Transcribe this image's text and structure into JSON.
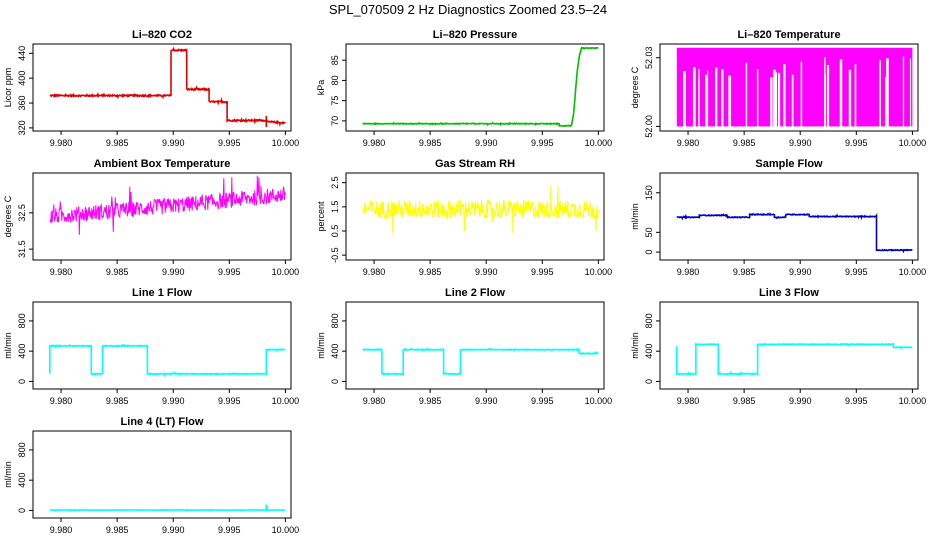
{
  "page": {
    "title": "SPL_070509  2 Hz Diagnostics Zoomed 23.5–24"
  },
  "chart_data": [
    {
      "type": "line",
      "title": "Li–820 CO2",
      "ylabel": "Licor ppm",
      "xlim": [
        9.9775,
        10.0005
      ],
      "ylim": [
        315,
        455
      ],
      "xticks": [
        "9.980",
        "9.985",
        "9.990",
        "9.995",
        "10.000"
      ],
      "xtick_values": [
        9.98,
        9.985,
        9.99,
        9.995,
        10.0
      ],
      "yticks": [
        "320",
        "360",
        "400",
        "440"
      ],
      "ytick_values": [
        320,
        360,
        400,
        440
      ],
      "color": "#e00000",
      "noise": 1.2,
      "series": [
        {
          "points": [
            [
              9.979,
              372
            ],
            [
              9.9898,
              372
            ],
            [
              9.9898,
              445
            ],
            [
              9.9912,
              445
            ],
            [
              9.9912,
              382
            ],
            [
              9.9932,
              382
            ],
            [
              9.9932,
              362
            ],
            [
              9.9948,
              362
            ],
            [
              9.9948,
              332
            ],
            [
              9.9983,
              332
            ],
            [
              9.9983,
              322
            ],
            [
              9.9983,
              340
            ],
            [
              9.9983,
              330
            ],
            [
              10.0,
              328
            ]
          ]
        }
      ]
    },
    {
      "type": "line",
      "title": "Li–820 Pressure",
      "ylabel": "kPa",
      "xlim": [
        9.9775,
        10.0005
      ],
      "ylim": [
        67.5,
        89
      ],
      "xticks": [
        "9.980",
        "9.985",
        "9.990",
        "9.995",
        "10.000"
      ],
      "xtick_values": [
        9.98,
        9.985,
        9.99,
        9.995,
        10.0
      ],
      "yticks": [
        "70",
        "75",
        "80",
        "85"
      ],
      "ytick_values": [
        70,
        75,
        80,
        85
      ],
      "color": "#00c000",
      "noise": 0.08,
      "series": [
        {
          "points": [
            [
              9.979,
              69.3
            ],
            [
              9.9965,
              69.3
            ],
            [
              9.9965,
              68.8
            ],
            [
              9.9976,
              68.8
            ],
            [
              9.9978,
              72
            ],
            [
              9.9981,
              82
            ],
            [
              9.9983,
              86
            ],
            [
              9.9985,
              88
            ],
            [
              10.0,
              88
            ]
          ]
        }
      ]
    },
    {
      "type": "line",
      "title": "Li–820 Temperature",
      "ylabel": "degrees C",
      "xlim": [
        9.9775,
        10.0005
      ],
      "ylim": [
        51.998,
        52.036
      ],
      "xticks": [
        "9.980",
        "9.985",
        "9.990",
        "9.995",
        "10.000"
      ],
      "xtick_values": [
        9.98,
        9.985,
        9.99,
        9.995,
        10.0
      ],
      "yticks": [
        "52.00",
        "52.03"
      ],
      "ytick_values": [
        52.0,
        52.03
      ],
      "color": "#ff00ff",
      "noise": 0,
      "fill_band": [
        52.0,
        52.034
      ],
      "series": [
        {
          "points": [
            [
              9.979,
              52.034
            ],
            [
              10.0,
              52.034
            ]
          ]
        }
      ]
    },
    {
      "type": "line",
      "title": "Ambient Box Temperature",
      "ylabel": "degrees C",
      "xlim": [
        9.9775,
        10.0005
      ],
      "ylim": [
        31.2,
        33.6
      ],
      "xticks": [
        "9.980",
        "9.985",
        "9.990",
        "9.995",
        "10.000"
      ],
      "xtick_values": [
        9.98,
        9.985,
        9.99,
        9.995,
        10.0
      ],
      "yticks": [
        "31.5",
        "32.5"
      ],
      "ytick_values": [
        31.5,
        32.5
      ],
      "color": "#ff00ff",
      "noise": 0.22,
      "series": [
        {
          "points": [
            [
              9.979,
              32.4
            ],
            [
              9.99,
              32.7
            ],
            [
              10.0,
              33.0
            ]
          ]
        }
      ]
    },
    {
      "type": "line",
      "title": "Gas Stream RH",
      "ylabel": "percent",
      "xlim": [
        9.9775,
        10.0005
      ],
      "ylim": [
        -0.7,
        2.9
      ],
      "xticks": [
        "9.980",
        "9.985",
        "9.990",
        "9.995",
        "10.000"
      ],
      "xtick_values": [
        9.98,
        9.985,
        9.99,
        9.995,
        10.0
      ],
      "yticks": [
        "-0.5",
        "0.5",
        "1.5",
        "2.5"
      ],
      "ytick_values": [
        -0.5,
        0.5,
        1.5,
        2.5
      ],
      "color": "#ffff00",
      "noise": 0.38,
      "series": [
        {
          "points": [
            [
              9.979,
              1.4
            ],
            [
              10.0,
              1.4
            ]
          ]
        }
      ]
    },
    {
      "type": "line",
      "title": "Sample Flow",
      "ylabel": "ml/min",
      "xlim": [
        9.9775,
        10.0005
      ],
      "ylim": [
        -20,
        200
      ],
      "xticks": [
        "9.980",
        "9.985",
        "9.990",
        "9.995",
        "10.000"
      ],
      "xtick_values": [
        9.98,
        9.985,
        9.99,
        9.995,
        10.0
      ],
      "yticks": [
        "0",
        "50",
        "150"
      ],
      "ytick_values": [
        0,
        50,
        150
      ],
      "color": "#0000c0",
      "noise": 1.0,
      "series": [
        {
          "points": [
            [
              9.979,
              88
            ],
            [
              9.981,
              88
            ],
            [
              9.981,
              93
            ],
            [
              9.9835,
              93
            ],
            [
              9.9835,
              88
            ],
            [
              9.9855,
              88
            ],
            [
              9.9855,
              95
            ],
            [
              9.9877,
              95
            ],
            [
              9.9877,
              88
            ],
            [
              9.9887,
              88
            ],
            [
              9.9887,
              95
            ],
            [
              9.9908,
              95
            ],
            [
              9.9908,
              90
            ],
            [
              9.9968,
              90
            ],
            [
              9.9968,
              5
            ],
            [
              10.0,
              5
            ]
          ]
        }
      ]
    },
    {
      "type": "line",
      "title": "Line 1 Flow",
      "ylabel": "ml/min",
      "xlim": [
        9.9775,
        10.0005
      ],
      "ylim": [
        -100,
        1050
      ],
      "xticks": [
        "9.980",
        "9.985",
        "9.990",
        "9.995",
        "10.000"
      ],
      "xtick_values": [
        9.98,
        9.985,
        9.99,
        9.995,
        10.0
      ],
      "yticks": [
        "0",
        "400",
        "800"
      ],
      "ytick_values": [
        0,
        400,
        800
      ],
      "color": "#00ffff",
      "noise": 5,
      "series": [
        {
          "points": [
            [
              9.979,
              100
            ],
            [
              9.979,
              470
            ],
            [
              9.9827,
              470
            ],
            [
              9.9827,
              100
            ],
            [
              9.9837,
              100
            ],
            [
              9.9837,
              470
            ],
            [
              9.9877,
              470
            ],
            [
              9.9877,
              100
            ],
            [
              9.9983,
              100
            ],
            [
              9.9983,
              420
            ],
            [
              10.0,
              420
            ]
          ]
        }
      ]
    },
    {
      "type": "line",
      "title": "Line 2 Flow",
      "ylabel": "ml/min",
      "xlim": [
        9.9775,
        10.0005
      ],
      "ylim": [
        -100,
        1050
      ],
      "xticks": [
        "9.980",
        "9.985",
        "9.990",
        "9.995",
        "10.000"
      ],
      "xtick_values": [
        9.98,
        9.985,
        9.99,
        9.995,
        10.0
      ],
      "yticks": [
        "0",
        "400",
        "800"
      ],
      "ytick_values": [
        0,
        400,
        800
      ],
      "color": "#00ffff",
      "noise": 5,
      "series": [
        {
          "points": [
            [
              9.979,
              420
            ],
            [
              9.9807,
              420
            ],
            [
              9.9807,
              100
            ],
            [
              9.9826,
              100
            ],
            [
              9.9826,
              420
            ],
            [
              9.9862,
              420
            ],
            [
              9.9862,
              100
            ],
            [
              9.9877,
              100
            ],
            [
              9.9877,
              420
            ],
            [
              9.9983,
              420
            ],
            [
              9.9983,
              370
            ],
            [
              10.0,
              370
            ]
          ]
        }
      ]
    },
    {
      "type": "line",
      "title": "Line 3 Flow",
      "ylabel": "ml/min",
      "xlim": [
        9.9775,
        10.0005
      ],
      "ylim": [
        -100,
        1050
      ],
      "xticks": [
        "9.980",
        "9.985",
        "9.990",
        "9.995",
        "10.000"
      ],
      "xtick_values": [
        9.98,
        9.985,
        9.99,
        9.995,
        10.0
      ],
      "yticks": [
        "0",
        "400",
        "800"
      ],
      "ytick_values": [
        0,
        400,
        800
      ],
      "color": "#00ffff",
      "noise": 5,
      "series": [
        {
          "points": [
            [
              9.979,
              470
            ],
            [
              9.979,
              100
            ],
            [
              9.9807,
              100
            ],
            [
              9.9807,
              490
            ],
            [
              9.9827,
              490
            ],
            [
              9.9827,
              100
            ],
            [
              9.9862,
              100
            ],
            [
              9.9862,
              490
            ],
            [
              9.9983,
              490
            ],
            [
              9.9983,
              450
            ],
            [
              10.0,
              450
            ]
          ]
        }
      ]
    },
    {
      "type": "line",
      "title": "Line 4 (LT) Flow",
      "ylabel": "ml/min",
      "xlim": [
        9.9775,
        10.0005
      ],
      "ylim": [
        -100,
        1050
      ],
      "xticks": [
        "9.980",
        "9.985",
        "9.990",
        "9.995",
        "10.000"
      ],
      "xtick_values": [
        9.98,
        9.985,
        9.99,
        9.995,
        10.0
      ],
      "yticks": [
        "0",
        "400",
        "800"
      ],
      "ytick_values": [
        0,
        400,
        800
      ],
      "color": "#00ffff",
      "noise": 2,
      "series": [
        {
          "points": [
            [
              9.979,
              5
            ],
            [
              9.9983,
              5
            ],
            [
              9.9983,
              80
            ],
            [
              9.9984,
              5
            ],
            [
              10.0,
              5
            ]
          ]
        }
      ]
    }
  ]
}
